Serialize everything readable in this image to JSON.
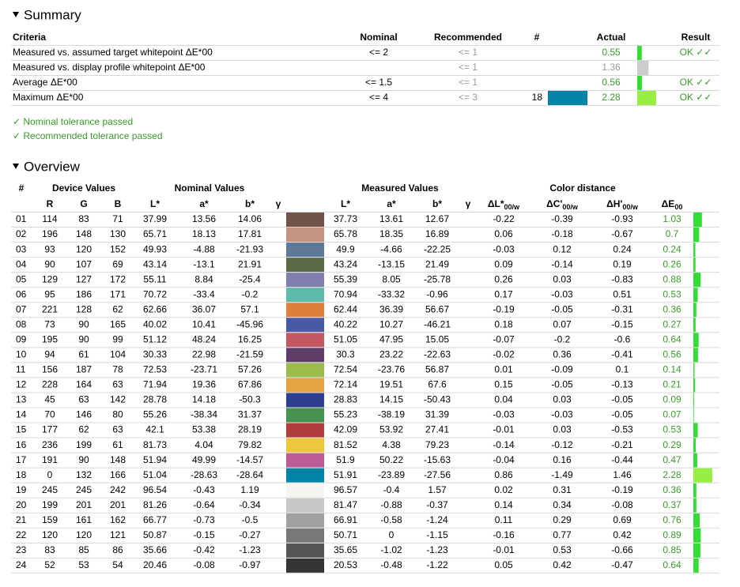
{
  "summary": {
    "title": "Summary",
    "columns": [
      "Criteria",
      "Nominal",
      "Recommended",
      "#",
      "Actual",
      "Result"
    ],
    "rows": [
      [
        "Measured vs. assumed target whitepoint ΔE*00",
        "<= 2",
        "<= 1",
        null,
        "0.55",
        "OK ✓✓"
      ],
      [
        "Measured vs. display profile whitepoint ΔE*00",
        null,
        "<= 1",
        null,
        "1.36",
        null
      ],
      [
        "Average ΔE*00",
        "<= 1.5",
        "<= 1",
        null,
        "0.56",
        "OK ✓✓"
      ],
      [
        "Maximum ΔE*00",
        "<= 4",
        "<= 3",
        "18",
        "2.28",
        "OK ✓✓"
      ]
    ],
    "notes": [
      "✓ Nominal tolerance passed",
      "✓ Recommended tolerance passed"
    ]
  },
  "overview": {
    "title": "Overview",
    "group_headers": [
      "#",
      "Device Values",
      "Nominal Values",
      "Measured Values",
      "Color distance"
    ],
    "columns": [
      {
        "main": "R"
      },
      {
        "main": "G"
      },
      {
        "main": "B"
      },
      {
        "main": "L*"
      },
      {
        "main": "a*"
      },
      {
        "main": "b*"
      },
      {
        "main": "γ"
      },
      {
        "main": "L*"
      },
      {
        "main": "a*"
      },
      {
        "main": "b*"
      },
      {
        "main": "γ"
      },
      {
        "main": "ΔL*",
        "sub": "00/w"
      },
      {
        "main": "ΔC'",
        "sub": "00/w"
      },
      {
        "main": "ΔH'",
        "sub": "00/w"
      },
      {
        "main": "ΔE",
        "sub": "00"
      }
    ],
    "rows": [
      [
        "01",
        "114",
        "83",
        "71",
        "37.99",
        "13.56",
        "14.06",
        "37.73",
        "13.61",
        "12.67",
        "-0.22",
        "-0.39",
        "-0.93",
        "1.03"
      ],
      [
        "02",
        "196",
        "148",
        "130",
        "65.71",
        "18.13",
        "17.81",
        "65.78",
        "18.35",
        "16.89",
        "0.06",
        "-0.18",
        "-0.67",
        "0.7"
      ],
      [
        "03",
        "93",
        "120",
        "152",
        "49.93",
        "-4.88",
        "-21.93",
        "49.9",
        "-4.66",
        "-22.25",
        "-0.03",
        "0.12",
        "0.24",
        "0.24"
      ],
      [
        "04",
        "90",
        "107",
        "69",
        "43.14",
        "-13.1",
        "21.91",
        "43.24",
        "-13.15",
        "21.49",
        "0.09",
        "-0.14",
        "0.19",
        "0.26"
      ],
      [
        "05",
        "129",
        "127",
        "172",
        "55.11",
        "8.84",
        "-25.4",
        "55.39",
        "8.05",
        "-25.78",
        "0.26",
        "0.03",
        "-0.83",
        "0.88"
      ],
      [
        "06",
        "95",
        "186",
        "171",
        "70.72",
        "-33.4",
        "-0.2",
        "70.94",
        "-33.32",
        "-0.96",
        "0.17",
        "-0.03",
        "0.51",
        "0.53"
      ],
      [
        "07",
        "221",
        "128",
        "62",
        "62.66",
        "36.07",
        "57.1",
        "62.44",
        "36.39",
        "56.67",
        "-0.19",
        "-0.05",
        "-0.31",
        "0.36"
      ],
      [
        "08",
        "73",
        "90",
        "165",
        "40.02",
        "10.41",
        "-45.96",
        "40.22",
        "10.27",
        "-46.21",
        "0.18",
        "0.07",
        "-0.15",
        "0.27"
      ],
      [
        "09",
        "195",
        "90",
        "99",
        "51.12",
        "48.24",
        "16.25",
        "51.05",
        "47.95",
        "15.05",
        "-0.07",
        "-0.2",
        "-0.6",
        "0.64"
      ],
      [
        "10",
        "94",
        "61",
        "104",
        "30.33",
        "22.98",
        "-21.59",
        "30.3",
        "23.22",
        "-22.63",
        "-0.02",
        "0.36",
        "-0.41",
        "0.56"
      ],
      [
        "11",
        "156",
        "187",
        "78",
        "72.53",
        "-23.71",
        "57.26",
        "72.54",
        "-23.76",
        "56.87",
        "0.01",
        "-0.09",
        "0.1",
        "0.14"
      ],
      [
        "12",
        "228",
        "164",
        "63",
        "71.94",
        "19.36",
        "67.86",
        "72.14",
        "19.51",
        "67.6",
        "0.15",
        "-0.05",
        "-0.13",
        "0.21"
      ],
      [
        "13",
        "45",
        "63",
        "142",
        "28.78",
        "14.18",
        "-50.3",
        "28.83",
        "14.15",
        "-50.43",
        "0.04",
        "0.03",
        "-0.05",
        "0.09"
      ],
      [
        "14",
        "70",
        "146",
        "80",
        "55.26",
        "-38.34",
        "31.37",
        "55.23",
        "-38.19",
        "31.39",
        "-0.03",
        "-0.03",
        "-0.05",
        "0.07"
      ],
      [
        "15",
        "177",
        "62",
        "63",
        "42.1",
        "53.38",
        "28.19",
        "42.09",
        "53.92",
        "27.41",
        "-0.01",
        "0.03",
        "-0.53",
        "0.53"
      ],
      [
        "16",
        "236",
        "199",
        "61",
        "81.73",
        "4.04",
        "79.82",
        "81.52",
        "4.38",
        "79.23",
        "-0.14",
        "-0.12",
        "-0.21",
        "0.29"
      ],
      [
        "17",
        "191",
        "90",
        "148",
        "51.94",
        "49.99",
        "-14.57",
        "51.9",
        "50.22",
        "-15.63",
        "-0.04",
        "0.16",
        "-0.44",
        "0.47"
      ],
      [
        "18",
        "0",
        "132",
        "166",
        "51.04",
        "-28.63",
        "-28.64",
        "51.91",
        "-23.89",
        "-27.56",
        "0.86",
        "-1.49",
        "1.46",
        "2.28"
      ],
      [
        "19",
        "245",
        "245",
        "242",
        "96.54",
        "-0.43",
        "1.19",
        "96.57",
        "-0.4",
        "1.57",
        "0.02",
        "0.31",
        "-0.19",
        "0.36"
      ],
      [
        "20",
        "199",
        "201",
        "201",
        "81.26",
        "-0.64",
        "-0.34",
        "81.47",
        "-0.88",
        "-0.37",
        "0.14",
        "0.34",
        "-0.08",
        "0.37"
      ],
      [
        "21",
        "159",
        "161",
        "162",
        "66.77",
        "-0.73",
        "-0.5",
        "66.91",
        "-0.58",
        "-1.24",
        "0.11",
        "0.29",
        "0.69",
        "0.76"
      ],
      [
        "22",
        "120",
        "120",
        "121",
        "50.87",
        "-0.15",
        "-0.27",
        "50.71",
        "0",
        "-1.15",
        "-0.16",
        "0.77",
        "0.42",
        "0.89"
      ],
      [
        "23",
        "83",
        "85",
        "86",
        "35.66",
        "-0.42",
        "-1.23",
        "35.65",
        "-1.02",
        "-1.23",
        "-0.01",
        "0.53",
        "-0.66",
        "0.85"
      ],
      [
        "24",
        "52",
        "53",
        "54",
        "20.46",
        "-0.08",
        "-0.97",
        "20.53",
        "-0.48",
        "-1.22",
        "0.05",
        "0.42",
        "-0.47",
        "0.64"
      ]
    ]
  }
}
